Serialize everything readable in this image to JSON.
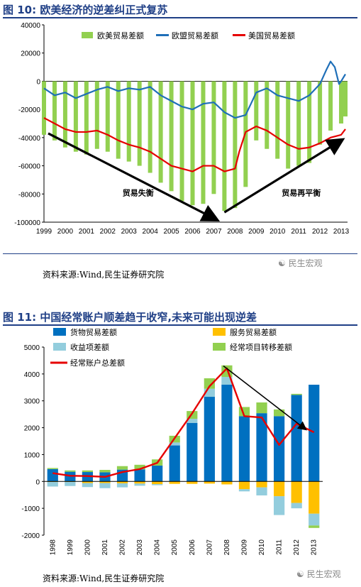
{
  "figure1": {
    "title": "图 10:  欧美经济的逆差纠正式复苏",
    "source": "资料来源:Wind,民生证券研究院",
    "watermark": "民生宏观",
    "chart_data": {
      "type": "line",
      "ylim": [
        -100000,
        40000
      ],
      "yticks": [
        40000,
        20000,
        0,
        -20000,
        -40000,
        -60000,
        -80000,
        -100000
      ],
      "xlim": [
        1999,
        2013.3
      ],
      "xticks": [
        1999,
        2000,
        2001,
        2002,
        2003,
        2004,
        2005,
        2006,
        2007,
        2008,
        2009,
        2010,
        2011,
        2012,
        2013
      ],
      "legend_position": "top",
      "series": [
        {
          "name": "欧美贸易差额",
          "type": "bar",
          "color": "#92d050",
          "x": [
            1999,
            1999.5,
            2000,
            2000.5,
            2001,
            2001.5,
            2002,
            2002.5,
            2003,
            2003.5,
            2004,
            2004.5,
            2005,
            2005.5,
            2006,
            2006.5,
            2007,
            2007.5,
            2008,
            2008.5,
            2009,
            2009.5,
            2010,
            2010.5,
            2011,
            2011.5,
            2012,
            2012.5,
            2013,
            2013.2
          ],
          "values": [
            -38000,
            -42000,
            -47000,
            -50000,
            -52000,
            -48000,
            -50000,
            -55000,
            -57000,
            -60000,
            -65000,
            -72000,
            -78000,
            -85000,
            -88000,
            -87000,
            -80000,
            -92000,
            -90000,
            -75000,
            -42000,
            -48000,
            -55000,
            -62000,
            -60000,
            -58000,
            -45000,
            -35000,
            -30000,
            -25000
          ]
        },
        {
          "name": "欧盟贸易差额",
          "type": "line",
          "color": "#1f6fb8",
          "x": [
            1999,
            1999.5,
            2000,
            2000.5,
            2001,
            2001.5,
            2002,
            2002.5,
            2003,
            2003.5,
            2004,
            2004.5,
            2005,
            2005.5,
            2006,
            2006.5,
            2007,
            2007.5,
            2008,
            2008.5,
            2009,
            2009.5,
            2010,
            2010.5,
            2011,
            2011.5,
            2012,
            2012.3,
            2012.5,
            2012.7,
            2012.9,
            2013,
            2013.2
          ],
          "values": [
            -5000,
            -10000,
            -8000,
            -12000,
            -9000,
            -6000,
            -4000,
            -7000,
            -5000,
            -6000,
            -4000,
            -10000,
            -14000,
            -18000,
            -20000,
            -16000,
            -15000,
            -22000,
            -26000,
            -24000,
            -8000,
            -5000,
            -10000,
            -12000,
            -14000,
            -10000,
            -2000,
            8000,
            14000,
            10000,
            -2000,
            0,
            5000
          ]
        },
        {
          "name": "美国贸易差额",
          "type": "line",
          "color": "#e60000",
          "x": [
            1999,
            1999.5,
            2000,
            2000.5,
            2001,
            2001.5,
            2002,
            2002.5,
            2003,
            2003.5,
            2004,
            2004.5,
            2005,
            2005.5,
            2006,
            2006.5,
            2007,
            2007.5,
            2008,
            2008.2,
            2008.5,
            2009,
            2009.5,
            2010,
            2010.5,
            2011,
            2011.5,
            2012,
            2012.5,
            2013,
            2013.2
          ],
          "values": [
            -26000,
            -30000,
            -34000,
            -36000,
            -36000,
            -35000,
            -38000,
            -42000,
            -45000,
            -47000,
            -50000,
            -55000,
            -60000,
            -62000,
            -64000,
            -60000,
            -60000,
            -64000,
            -62000,
            -50000,
            -36000,
            -32000,
            -35000,
            -40000,
            -45000,
            -48000,
            -47000,
            -44000,
            -40000,
            -38000,
            -34000
          ]
        }
      ],
      "annotations": [
        {
          "text": "贸易失衡",
          "x": 2002.7,
          "y": -81000
        },
        {
          "text": "贸易再平衡",
          "x": 2010.2,
          "y": -81000
        }
      ],
      "arrows": [
        {
          "from": [
            1999.2,
            -37000
          ],
          "to": [
            2007.1,
            -98000
          ]
        },
        {
          "from": [
            2007.5,
            -93000
          ],
          "to": [
            2013,
            -42000
          ]
        }
      ]
    }
  },
  "figure2": {
    "title": "图 11:  中国经常账户顺差趋于收窄,未来可能出现逆差",
    "source": "资料来源:Wind,民生证券研究院",
    "watermark": "民生宏观",
    "chart_data": {
      "type": "bar",
      "stacked": true,
      "ylim": [
        -2000,
        5000
      ],
      "yticks": [
        5000,
        4000,
        3000,
        2000,
        1000,
        0,
        -1000,
        -2000
      ],
      "categories": [
        "1998",
        "1999",
        "2000",
        "2001",
        "2002",
        "2003",
        "2004",
        "2005",
        "2006",
        "2007",
        "2008",
        "2009",
        "2010",
        "2011",
        "2012",
        "2013"
      ],
      "legend_position": "top",
      "series": [
        {
          "name": "货物贸易差额",
          "type": "bar",
          "color": "#0070c0",
          "values": [
            460,
            360,
            350,
            340,
            440,
            450,
            590,
            1340,
            2180,
            3150,
            3600,
            2430,
            2540,
            2430,
            3220,
            3600
          ]
        },
        {
          "name": "服务贸易差额",
          "type": "bar",
          "color": "#ffc000",
          "values": [
            -20,
            -20,
            -60,
            -60,
            -70,
            -80,
            -100,
            -90,
            -90,
            -80,
            -110,
            -290,
            -220,
            -550,
            -800,
            -1200
          ]
        },
        {
          "name": "收益项差额",
          "type": "bar",
          "color": "#93cddd",
          "values": [
            -170,
            -150,
            -150,
            -190,
            -150,
            -80,
            -40,
            110,
            150,
            300,
            290,
            -80,
            -300,
            -700,
            -200,
            -440
          ]
        },
        {
          "name": "经常项目转移差额",
          "type": "bar",
          "color": "#92d050",
          "values": [
            40,
            50,
            60,
            90,
            130,
            170,
            230,
            250,
            290,
            390,
            430,
            340,
            400,
            250,
            40,
            -90
          ]
        },
        {
          "name": "经常账户总差额",
          "type": "line",
          "color": "#e60000",
          "values": [
            310,
            210,
            200,
            170,
            350,
            460,
            690,
            1610,
            2530,
            3540,
            4210,
            2430,
            2380,
            1360,
            2150,
            1830
          ]
        }
      ],
      "arrows": [
        {
          "from": [
            10.3,
            4300
          ],
          "to": [
            15,
            1950
          ]
        }
      ]
    }
  }
}
